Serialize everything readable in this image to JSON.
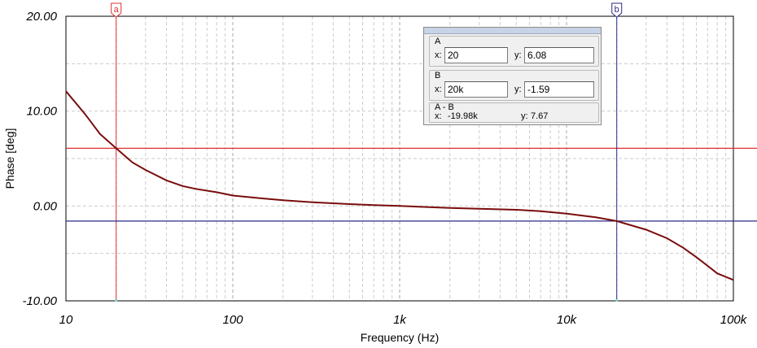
{
  "chart_data": {
    "type": "line",
    "xscale": "log",
    "xlim": [
      10,
      100000
    ],
    "ylim": [
      -10,
      20
    ],
    "xlabel": "Frequency (Hz)",
    "ylabel": "Phase [deg]",
    "x_ticks": [
      {
        "value": 10,
        "label": "10"
      },
      {
        "value": 100,
        "label": "100"
      },
      {
        "value": 1000,
        "label": "1k"
      },
      {
        "value": 10000,
        "label": "10k"
      },
      {
        "value": 100000,
        "label": "100k"
      }
    ],
    "y_ticks": [
      {
        "value": 20,
        "label": "20.00"
      },
      {
        "value": 10,
        "label": "10.00"
      },
      {
        "value": 0,
        "label": "0.00"
      },
      {
        "value": -10,
        "label": "-10.00"
      }
    ],
    "grid": true,
    "series": [
      {
        "color": "#7a0c0c",
        "x": [
          10,
          13,
          16,
          20,
          25,
          30,
          40,
          50,
          60,
          80,
          100,
          150,
          200,
          300,
          500,
          700,
          1000,
          2000,
          3000,
          5000,
          7000,
          10000,
          15000,
          20000,
          30000,
          40000,
          50000,
          60000,
          70000,
          80000,
          100000
        ],
        "y": [
          12.1,
          9.7,
          7.6,
          6.08,
          4.6,
          3.8,
          2.7,
          2.1,
          1.8,
          1.45,
          1.1,
          0.8,
          0.6,
          0.4,
          0.2,
          0.1,
          0.0,
          -0.2,
          -0.3,
          -0.4,
          -0.55,
          -0.8,
          -1.2,
          -1.59,
          -2.5,
          -3.4,
          -4.4,
          -5.4,
          -6.3,
          -7.1,
          -7.8
        ]
      }
    ],
    "cursors": [
      {
        "id": "a",
        "label": "a",
        "x": 20,
        "y": 6.08,
        "color": "#e03030"
      },
      {
        "id": "b",
        "label": "b",
        "x": 20000,
        "y": -1.59,
        "color": "#2a2a8a"
      }
    ]
  },
  "cursor_panel": {
    "a": {
      "title": "A",
      "x_label": "x:",
      "x_value": "20",
      "y_label": "y:",
      "y_value": "6.08"
    },
    "b": {
      "title": "B",
      "x_label": "x:",
      "x_value": "20k",
      "y_label": "y:",
      "y_value": "-1.59"
    },
    "diff": {
      "title": "A - B",
      "x_label": "x:",
      "x_value": "-19.98k",
      "y_label": "y:",
      "y_value": "7.67"
    }
  }
}
